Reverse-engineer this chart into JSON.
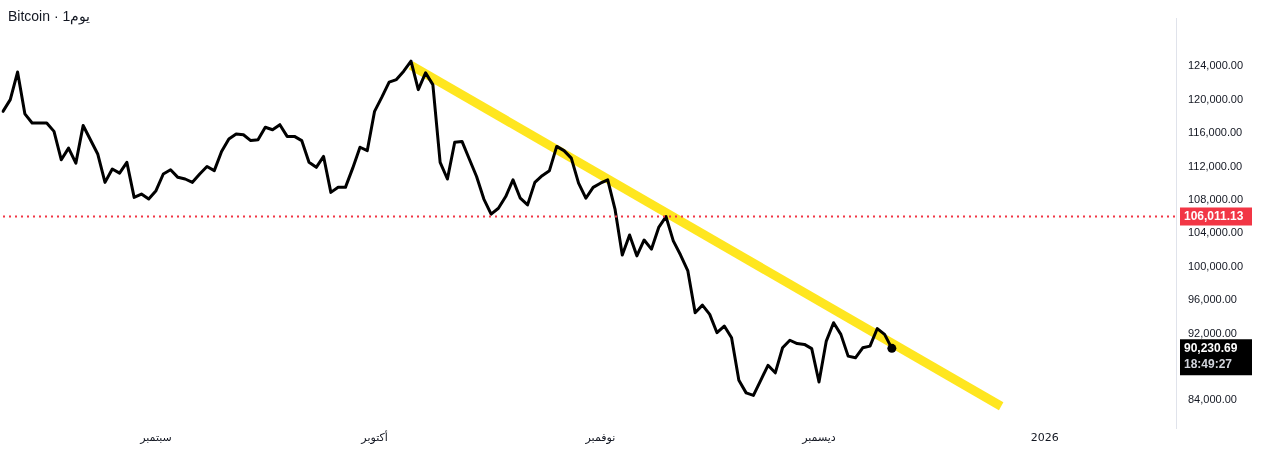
{
  "chart_data": {
    "type": "line",
    "title": "Bitcoin · 1يوم",
    "categories": [
      null,
      null,
      null,
      null,
      null,
      null,
      null,
      null,
      null,
      null,
      null,
      null,
      null,
      null,
      null,
      null,
      null,
      null,
      null,
      null,
      null,
      "سبتمبر",
      null,
      null,
      null,
      null,
      null,
      null,
      null,
      null,
      null,
      null,
      null,
      null,
      null,
      null,
      null,
      null,
      null,
      null,
      null,
      null,
      null,
      null,
      null,
      null,
      null,
      null,
      null,
      null,
      null,
      "أكتوبر",
      null,
      null,
      null,
      null,
      null,
      null,
      null,
      null,
      null,
      null,
      null,
      null,
      null,
      null,
      null,
      null,
      null,
      null,
      null,
      null,
      null,
      null,
      null,
      null,
      null,
      null,
      null,
      null,
      null,
      null,
      "نوفمبر",
      null,
      null,
      null,
      null,
      null,
      null,
      null,
      null,
      null,
      null,
      null,
      null,
      null,
      null,
      null,
      null,
      null,
      null,
      null,
      null,
      null,
      null,
      null,
      null,
      null,
      null,
      null,
      null,
      null,
      "ديسمبر",
      null,
      null,
      null,
      null,
      null,
      null,
      null,
      null,
      null,
      null,
      null,
      null,
      null,
      null,
      null,
      null,
      null,
      null,
      null,
      null,
      null,
      null,
      null,
      null,
      null,
      null,
      null,
      null,
      null,
      null,
      "2026",
      null,
      null,
      null,
      null,
      null,
      null,
      null,
      null,
      null,
      null,
      null,
      null,
      null,
      null,
      null,
      null,
      null,
      null
    ],
    "series": [
      {
        "color": "#000000",
        "values": [
          118600,
          120000,
          123300,
          118300,
          117200,
          117200,
          117200,
          116200,
          112800,
          114200,
          112400,
          116900,
          115200,
          113500,
          110100,
          111700,
          111200,
          112500,
          108300,
          108700,
          108100,
          109100,
          111100,
          111600,
          110700,
          110500,
          110100,
          111100,
          112000,
          111500,
          113800,
          115300,
          115900,
          115800,
          115100,
          115200,
          116700,
          116400,
          117000,
          115600,
          115600,
          115100,
          112500,
          111900,
          113200,
          108900,
          109500,
          109500,
          111800,
          114300,
          113900,
          118600,
          120300,
          122100,
          122400,
          123400,
          124600,
          121200,
          123200,
          121800,
          112500,
          110500,
          114900,
          115000,
          112900,
          110800,
          108100,
          106300,
          107000,
          108400,
          110400,
          108200,
          107400,
          110100,
          110900,
          111500,
          114400,
          113900,
          113000,
          110000,
          108200,
          109500,
          110000,
          110400,
          106900,
          101400,
          103800,
          101300,
          103200,
          102100,
          104700,
          106000,
          103100,
          101400,
          99500,
          94500,
          95400,
          94300,
          92100,
          92900,
          91500,
          86400,
          84900,
          84600,
          86400,
          88200,
          87300,
          90300,
          91200,
          90800,
          90700,
          90200,
          86200,
          91100,
          93300,
          91900,
          89300,
          89100,
          90300,
          90500,
          92600,
          91900,
          90230.69,
          null,
          null,
          null,
          null,
          null,
          null,
          null,
          null,
          null,
          null,
          null,
          null,
          null,
          null,
          null,
          null,
          null,
          null,
          null,
          null,
          null,
          null,
          null,
          null,
          null,
          null,
          null,
          null,
          null,
          null,
          null,
          null,
          null,
          null,
          null,
          null,
          null,
          null,
          null
        ]
      },
      {
        "color": "#ffe61f",
        "values": [
          null,
          null,
          null,
          null,
          null,
          null,
          null,
          null,
          null,
          null,
          null,
          null,
          null,
          null,
          null,
          null,
          null,
          null,
          null,
          null,
          null,
          null,
          null,
          null,
          null,
          null,
          null,
          null,
          null,
          null,
          null,
          null,
          null,
          null,
          null,
          null,
          null,
          null,
          null,
          null,
          null,
          null,
          null,
          null,
          null,
          null,
          null,
          null,
          null,
          null,
          null,
          null,
          null,
          null,
          null,
          null,
          124100,
          null,
          null,
          null,
          null,
          null,
          null,
          null,
          null,
          null,
          null,
          null,
          null,
          null,
          null,
          null,
          null,
          null,
          null,
          null,
          null,
          null,
          null,
          null,
          null,
          null,
          null,
          null,
          null,
          null,
          null,
          null,
          null,
          null,
          null,
          null,
          null,
          null,
          null,
          null,
          null,
          null,
          null,
          null,
          null,
          null,
          null,
          null,
          null,
          null,
          null,
          null,
          null,
          null,
          null,
          null,
          null,
          null,
          null,
          null,
          null,
          null,
          null,
          null,
          null,
          null,
          null,
          null,
          null,
          null,
          null,
          null,
          null,
          null,
          null,
          null,
          null,
          null,
          null,
          null,
          null,
          83300,
          null,
          null,
          null,
          null,
          null,
          null,
          null,
          null,
          null,
          null,
          null,
          null,
          null,
          null,
          null,
          null,
          null,
          null,
          null,
          null,
          null,
          null,
          null,
          null
        ]
      }
    ],
    "ylim": [
      80600,
      129700
    ],
    "yticks": [
      {
        "value": 84000,
        "label": "84,000.00"
      },
      {
        "value": 92000,
        "label": "92,000.00"
      },
      {
        "value": 96000,
        "label": "96,000.00"
      },
      {
        "value": 100000,
        "label": "100,000.00"
      },
      {
        "value": 104000,
        "label": "104,000.00"
      },
      {
        "value": 108000,
        "label": "108,000.00"
      },
      {
        "value": 112000,
        "label": "112,000.00"
      },
      {
        "value": 116000,
        "label": "116,000.00"
      },
      {
        "value": 120000,
        "label": "120,000.00"
      },
      {
        "value": 124000,
        "label": "124,000.00"
      }
    ],
    "ref_lines": [
      {
        "axis": "y",
        "value": 106011.13,
        "label": "106,011.13",
        "color": "#f23645",
        "line_style": "dotted"
      }
    ],
    "annotations": [
      "90,230.69",
      "18:49:27"
    ],
    "grid": false,
    "legend": false,
    "marker": "none",
    "line_style": "solid"
  }
}
